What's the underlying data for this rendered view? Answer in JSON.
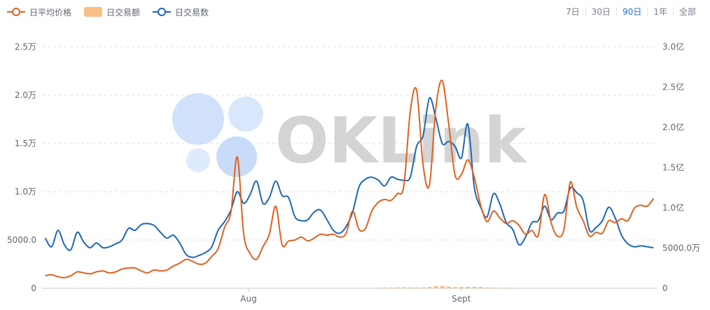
{
  "legend": {
    "price_label": "日平均价格",
    "amount_label": "日交易额",
    "count_label": "日交易数"
  },
  "ranges": [
    "7日",
    "30日",
    "90日",
    "1年",
    "全部"
  ],
  "active_range": "90日",
  "watermark_text": "OKLink",
  "colors": {
    "price": "#e0611f",
    "amount": "#f9bf86",
    "count": "#1f66b3",
    "active_range": "#2b6cd6",
    "grid": "#dde1e6"
  },
  "chart_data": {
    "type": "bar+line",
    "x_tick_labels": [
      "Aug",
      "Sept"
    ],
    "left_axis": {
      "ticks": [
        "0",
        "5000.0",
        "1.0万",
        "1.5万",
        "2.0万",
        "2.5万"
      ],
      "range": [
        0,
        25000
      ]
    },
    "right_axis": {
      "ticks": [
        "0",
        "5000.0万",
        "1.0亿",
        "1.5亿",
        "2.0亿",
        "2.5亿",
        "3.0亿"
      ],
      "range": [
        0,
        300000000
      ]
    },
    "bars_unit": "万",
    "bars": [
      7,
      2,
      6,
      5,
      5,
      6,
      4,
      8,
      6,
      6,
      7,
      8,
      8,
      6,
      12,
      13,
      14,
      11,
      12,
      10,
      9,
      8,
      7,
      6,
      7,
      8,
      11,
      9,
      12,
      35,
      58,
      36,
      24,
      38,
      50,
      58,
      66,
      48,
      44,
      35,
      40,
      37,
      31,
      31,
      33,
      35,
      23,
      22,
      25,
      30,
      29,
      47,
      72,
      95,
      107,
      124,
      128,
      110,
      95,
      120,
      175,
      290,
      300,
      215,
      160,
      150,
      175,
      165,
      161,
      107,
      98,
      82,
      73,
      63,
      52,
      38,
      25,
      30,
      45,
      50,
      43,
      33,
      51,
      50,
      50,
      36,
      34,
      36,
      38,
      39,
      40,
      40,
      38,
      41,
      37,
      40
    ],
    "count_line": [
      5200,
      4300,
      6000,
      4500,
      4000,
      5800,
      4800,
      4200,
      4700,
      4200,
      4300,
      4600,
      5000,
      6200,
      6000,
      6600,
      6700,
      6500,
      5800,
      5200,
      5500,
      4700,
      3500,
      3200,
      3400,
      3700,
      4300,
      6000,
      6900,
      8100,
      10000,
      8800,
      9700,
      11100,
      8800,
      9400,
      11100,
      9600,
      9400,
      7400,
      7000,
      7100,
      7900,
      8100,
      7100,
      6000,
      5700,
      6400,
      7900,
      10500,
      11300,
      11500,
      11200,
      10600,
      11500,
      11300,
      11200,
      11500,
      14700,
      15800,
      19700,
      17600,
      15000,
      15200,
      14700,
      13500,
      17000,
      10500,
      8400,
      7400,
      9800,
      8700,
      6800,
      6100,
      4500,
      5300,
      6800,
      7000,
      8500,
      7100,
      7800,
      8000,
      10400,
      9900,
      9100,
      6000,
      6300,
      7000,
      8400,
      7300,
      5500,
      4600,
      4300,
      4400,
      4300,
      4200
    ],
    "price_line": [
      1300,
      1400,
      1200,
      1100,
      1300,
      1700,
      1600,
      1500,
      1700,
      1800,
      1600,
      1700,
      2000,
      2100,
      2100,
      1800,
      1600,
      1900,
      1800,
      1900,
      2300,
      2600,
      3000,
      2800,
      2500,
      2600,
      3300,
      4100,
      6300,
      7900,
      13600,
      5600,
      3600,
      3000,
      4300,
      5600,
      8500,
      4500,
      4900,
      5000,
      5300,
      4900,
      5200,
      5600,
      5500,
      5600,
      5300,
      5700,
      8000,
      6100,
      6200,
      8000,
      8900,
      9200,
      9100,
      9800,
      10600,
      18300,
      20500,
      12800,
      10700,
      18700,
      21500,
      17000,
      11700,
      11800,
      13300,
      11500,
      8600,
      6900,
      8000,
      7300,
      6700,
      7000,
      6500,
      5600,
      6000,
      5500,
      9700,
      6800,
      5400,
      6100,
      11000,
      8400,
      7000,
      5400,
      5800,
      5700,
      7000,
      6800,
      7200,
      7000,
      8300,
      8600,
      8500,
      9300
    ]
  }
}
